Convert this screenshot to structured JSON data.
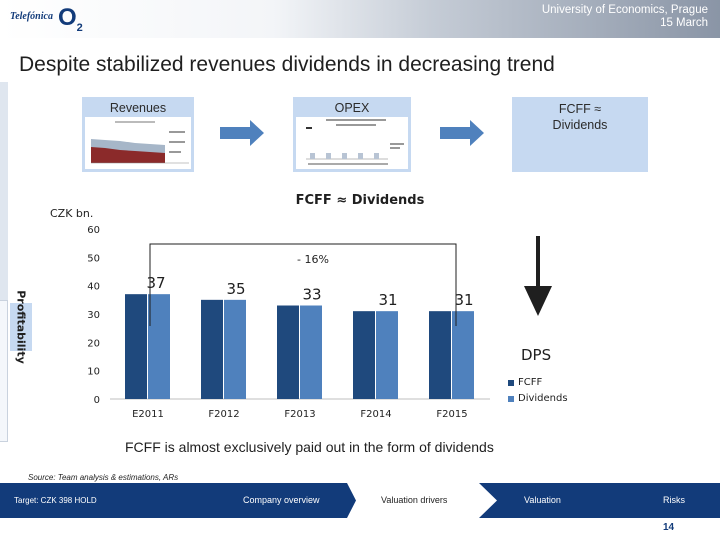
{
  "header": {
    "brand_logo": "Telefónica",
    "o2_logo": "O",
    "o2_sub": "2",
    "line1": "University of Economics, Prague",
    "line2": "15 March"
  },
  "title": "Despite stabilized revenues dividends in decreasing trend",
  "panels": {
    "revenues": "Revenues",
    "opex": "OPEX",
    "fcff_line1": "FCFF ≈",
    "fcff_line2": "Dividends"
  },
  "chart_data": {
    "type": "bar",
    "title": "FCFF ≈ Dividends",
    "unit": "CZK bn.",
    "categories": [
      "E2011",
      "F2012",
      "F2013",
      "F2014",
      "F2015"
    ],
    "series": [
      {
        "name": "FCFF",
        "values": [
          37,
          35,
          33,
          31,
          31
        ],
        "color": "#1f497d"
      },
      {
        "name": "Dividends",
        "values": [
          37,
          35,
          33,
          31,
          31
        ],
        "color": "#4f81bd"
      }
    ],
    "value_labels": [
      "37",
      "35",
      "33",
      "31",
      "31"
    ],
    "yticks": [
      "0",
      "10",
      "20",
      "30",
      "40",
      "50",
      "60"
    ],
    "ylim": [
      0,
      60
    ],
    "annotation": "- 16%",
    "side_label": "Profitability",
    "dps_label": "DPS",
    "legend_position": "right"
  },
  "caption": "FCFF is almost exclusively paid out in the form of dividends",
  "source": "Source: Team analysis & estimations, ARs",
  "nav": {
    "target": "Target: CZK 398 HOLD",
    "company": "Company overview",
    "valuation_drivers": "Valuation drivers",
    "valuation": "Valuation",
    "risks": "Risks"
  },
  "page_number": "14",
  "colors": {
    "navy": "#123b7a",
    "panel": "#c6d9f1",
    "arrow": "#4f81bd"
  }
}
